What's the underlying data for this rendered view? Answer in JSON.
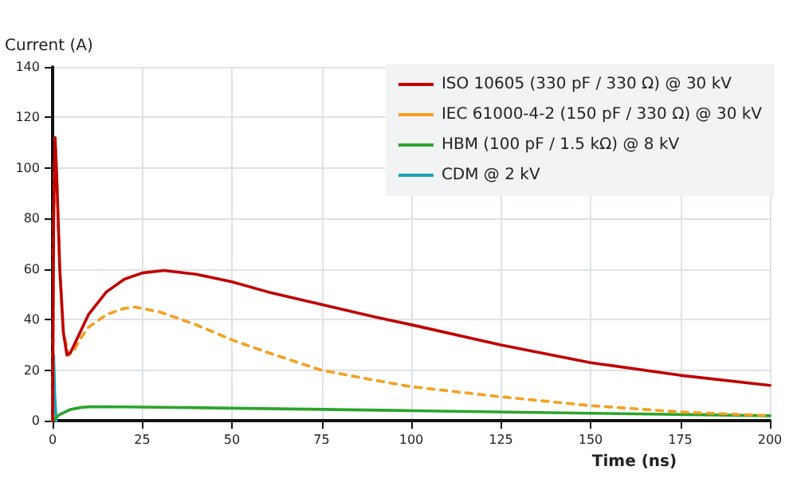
{
  "chart_data": {
    "type": "line",
    "xlabel": "Time (ns)",
    "ylabel": "Current (A)",
    "xlim": [
      0,
      200
    ],
    "xticks": [
      0,
      25,
      50,
      75,
      100,
      125,
      150,
      175,
      200
    ],
    "ylim": [
      0,
      140
    ],
    "yticks": [
      0,
      20,
      40,
      60,
      80,
      100,
      120,
      140
    ],
    "grid": true,
    "legend": "top right",
    "marker": "none",
    "series": [
      {
        "name": "ISO 10605 (330 pF / 330 Ω) @ 30 kV",
        "color": "#c00000",
        "line_style": "solid",
        "x": [
          0,
          0.3,
          0.7,
          1.2,
          2,
          3,
          4,
          5,
          7,
          10,
          15,
          20,
          25,
          31,
          40,
          50,
          60,
          75,
          90,
          100,
          125,
          150,
          175,
          200
        ],
        "values": [
          0,
          80,
          112,
          95,
          60,
          35,
          26,
          27,
          33,
          42,
          51,
          56,
          58.5,
          59.5,
          58,
          55,
          51,
          46,
          41,
          38,
          30,
          23,
          18,
          14
        ]
      },
      {
        "name": "IEC 61000-4-2 (150 pF / 330 Ω) @ 30 kV",
        "color": "#f5a020",
        "line_style": "dashed",
        "x": [
          0,
          0.3,
          0.7,
          1.2,
          2,
          3,
          4.5,
          6,
          8,
          10,
          15,
          20,
          23,
          30,
          40,
          50,
          60,
          75,
          90,
          100,
          125,
          150,
          175,
          200
        ],
        "values": [
          0,
          80,
          112,
          95,
          60,
          35,
          26,
          28,
          33,
          37,
          42,
          44.5,
          45,
          43,
          38,
          32,
          27,
          20,
          16,
          13.5,
          9.5,
          6,
          3.5,
          2
        ]
      },
      {
        "name": "HBM (100 pF / 1.5 kΩ) @ 8 kV",
        "color": "#2aa52a",
        "line_style": "solid",
        "x": [
          0,
          2,
          5,
          8,
          11,
          20,
          50,
          75,
          100,
          150,
          200
        ],
        "values": [
          0,
          2.5,
          4.5,
          5.3,
          5.6,
          5.5,
          5,
          4.5,
          4,
          3,
          2
        ]
      },
      {
        "name": "CDM @ 2 kV",
        "color": "#1ba1b5",
        "line_style": "solid",
        "x": [
          0,
          0.15,
          0.3,
          0.6,
          1
        ],
        "values": [
          0,
          15,
          26,
          10,
          0
        ]
      }
    ]
  }
}
